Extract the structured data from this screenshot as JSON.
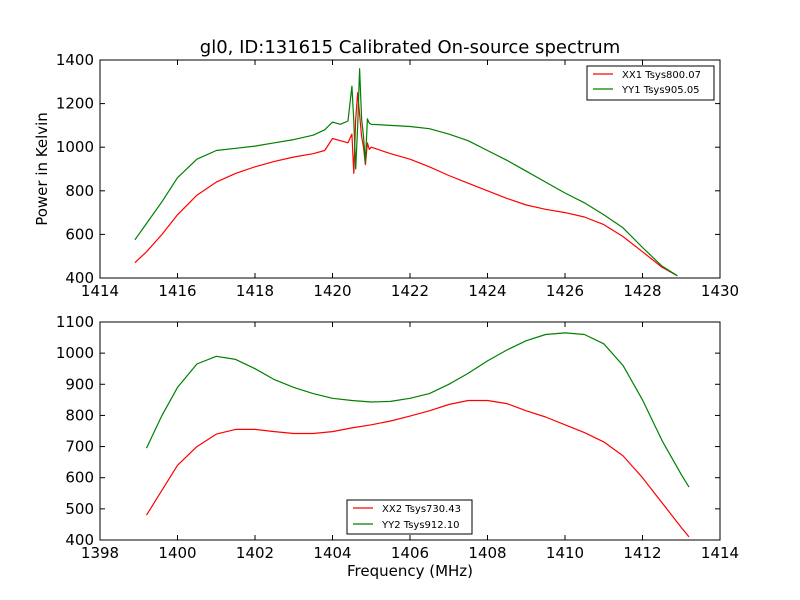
{
  "chart_data": [
    {
      "type": "line",
      "title": "gl0, ID:131615 Calibrated On-source spectrum",
      "xlabel": "",
      "ylabel": "Power in Kelvin",
      "xlim": [
        1414,
        1430
      ],
      "ylim": [
        400,
        1400
      ],
      "xticks": [
        "1414",
        "1416",
        "1418",
        "1420",
        "1422",
        "1424",
        "1426",
        "1428",
        "1430"
      ],
      "yticks": [
        "400",
        "600",
        "800",
        "1000",
        "1200",
        "1400"
      ],
      "legend": "top-right",
      "grid": false,
      "series": [
        {
          "name": "XX1 Tsys800.07",
          "color": "#ff0000",
          "x": [
            1414.9,
            1415.2,
            1415.6,
            1416.0,
            1416.5,
            1417.0,
            1417.5,
            1418.0,
            1418.5,
            1419.0,
            1419.5,
            1419.8,
            1420.0,
            1420.2,
            1420.4,
            1420.5,
            1420.55,
            1420.6,
            1420.65,
            1420.7,
            1420.75,
            1420.8,
            1420.85,
            1420.9,
            1420.95,
            1421.0,
            1421.5,
            1422.0,
            1422.5,
            1423.0,
            1423.5,
            1424.0,
            1424.5,
            1425.0,
            1425.5,
            1426.0,
            1426.5,
            1427.0,
            1427.5,
            1428.0,
            1428.5,
            1428.9
          ],
          "y": [
            470,
            520,
            600,
            690,
            780,
            840,
            880,
            910,
            935,
            955,
            970,
            985,
            1040,
            1030,
            1020,
            1060,
            880,
            1130,
            1250,
            1150,
            1050,
            1000,
            920,
            1020,
            990,
            1000,
            970,
            945,
            910,
            870,
            835,
            800,
            765,
            735,
            715,
            700,
            680,
            645,
            590,
            520,
            450,
            410
          ]
        },
        {
          "name": "YY1 Tsys905.05",
          "color": "#008000",
          "x": [
            1414.9,
            1415.2,
            1415.6,
            1416.0,
            1416.5,
            1417.0,
            1417.5,
            1418.0,
            1418.5,
            1419.0,
            1419.5,
            1419.8,
            1420.0,
            1420.2,
            1420.4,
            1420.5,
            1420.55,
            1420.6,
            1420.65,
            1420.7,
            1420.75,
            1420.8,
            1420.85,
            1420.9,
            1420.95,
            1421.0,
            1421.5,
            1422.0,
            1422.5,
            1423.0,
            1423.5,
            1424.0,
            1424.5,
            1425.0,
            1425.5,
            1426.0,
            1426.5,
            1427.0,
            1427.5,
            1428.0,
            1428.5,
            1428.9
          ],
          "y": [
            575,
            650,
            750,
            860,
            945,
            985,
            995,
            1005,
            1020,
            1035,
            1055,
            1080,
            1115,
            1105,
            1120,
            1280,
            1120,
            900,
            1100,
            1360,
            1130,
            1050,
            930,
            1130,
            1110,
            1105,
            1100,
            1095,
            1085,
            1060,
            1030,
            985,
            940,
            890,
            840,
            790,
            745,
            690,
            630,
            540,
            455,
            410
          ]
        }
      ]
    },
    {
      "type": "line",
      "title": "",
      "xlabel": "Frequency (MHz)",
      "ylabel": "",
      "xlim": [
        1398,
        1414
      ],
      "ylim": [
        400,
        1100
      ],
      "xticks": [
        "1398",
        "1400",
        "1402",
        "1404",
        "1406",
        "1408",
        "1410",
        "1412",
        "1414"
      ],
      "yticks": [
        "400",
        "500",
        "600",
        "700",
        "800",
        "900",
        "1000",
        "1100"
      ],
      "legend": "bottom-center",
      "grid": false,
      "series": [
        {
          "name": "XX2 Tsys730.43",
          "color": "#ff0000",
          "x": [
            1399.2,
            1399.6,
            1400.0,
            1400.5,
            1401.0,
            1401.5,
            1402.0,
            1402.5,
            1403.0,
            1403.5,
            1404.0,
            1404.5,
            1405.0,
            1405.5,
            1406.0,
            1406.5,
            1407.0,
            1407.5,
            1408.0,
            1408.5,
            1409.0,
            1409.5,
            1410.0,
            1410.5,
            1411.0,
            1411.5,
            1412.0,
            1412.5,
            1413.0,
            1413.2
          ],
          "y": [
            480,
            560,
            640,
            700,
            740,
            755,
            755,
            748,
            742,
            742,
            748,
            760,
            770,
            782,
            798,
            815,
            835,
            848,
            848,
            838,
            815,
            795,
            770,
            745,
            715,
            670,
            600,
            520,
            440,
            410
          ]
        },
        {
          "name": "YY2 Tsys912.10",
          "color": "#008000",
          "x": [
            1399.2,
            1399.6,
            1400.0,
            1400.5,
            1401.0,
            1401.5,
            1402.0,
            1402.5,
            1403.0,
            1403.5,
            1404.0,
            1404.5,
            1405.0,
            1405.5,
            1406.0,
            1406.5,
            1407.0,
            1407.5,
            1408.0,
            1408.5,
            1409.0,
            1409.5,
            1410.0,
            1410.5,
            1411.0,
            1411.5,
            1412.0,
            1412.5,
            1413.0,
            1413.2
          ],
          "y": [
            695,
            800,
            890,
            965,
            990,
            980,
            950,
            915,
            890,
            870,
            855,
            848,
            843,
            845,
            855,
            870,
            900,
            935,
            975,
            1010,
            1040,
            1060,
            1065,
            1060,
            1030,
            960,
            850,
            720,
            610,
            570
          ]
        }
      ]
    }
  ]
}
